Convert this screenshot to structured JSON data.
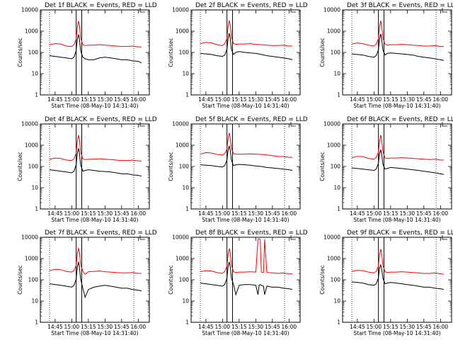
{
  "chart_data": [
    {
      "type": "line",
      "title": "Det 1f BLACK = Events, RED = LLD",
      "ylabel": "Counts/sec",
      "xlabel": "Start Time (08-May-10 14:31:40)",
      "yscale": "log",
      "ylim": [
        1,
        10000
      ],
      "xlim": [
        "14:31:40",
        "16:10"
      ],
      "x_ticks": [
        "14:45",
        "15:00",
        "15:15",
        "15:30",
        "15:45",
        "16:00"
      ],
      "y_ticks": [
        "1",
        "10",
        "100",
        "1000",
        "10000"
      ],
      "vlines_solid": [
        "15:04",
        "15:09"
      ],
      "vlines_dotted": [
        "14:40",
        "15:56"
      ],
      "x": [
        "14:40",
        "14:45",
        "14:50",
        "14:55",
        "15:00",
        "15:02",
        "15:04",
        "15:05",
        "15:06",
        "15:07",
        "15:08",
        "15:10",
        "15:12",
        "15:15",
        "15:20",
        "15:25",
        "15:30",
        "15:35",
        "15:40",
        "15:45",
        "15:50",
        "15:55",
        "16:00",
        "16:03"
      ],
      "series": [
        {
          "name": "LLD",
          "color": "#ff0000",
          "values": [
            230,
            260,
            250,
            200,
            190,
            230,
            420,
            1500,
            3000,
            1800,
            500,
            230,
            210,
            220,
            220,
            230,
            220,
            210,
            200,
            190,
            190,
            200,
            180,
            180
          ]
        },
        {
          "name": "Events",
          "color": "#000000",
          "values": [
            70,
            65,
            60,
            55,
            50,
            60,
            120,
            400,
            700,
            400,
            120,
            60,
            50,
            45,
            45,
            55,
            60,
            55,
            50,
            45,
            45,
            40,
            38,
            32
          ]
        }
      ]
    },
    {
      "type": "line",
      "title": "Det 2f BLACK = Events, RED = LLD",
      "ylabel": "Counts/sec",
      "xlabel": "Start Time (08-May-10 14:31:40)",
      "yscale": "log",
      "ylim": [
        1,
        10000
      ],
      "xlim": [
        "14:31:40",
        "16:10"
      ],
      "x_ticks": [
        "14:45",
        "15:00",
        "15:15",
        "15:30",
        "15:45",
        "16:00"
      ],
      "y_ticks": [
        "1",
        "10",
        "100",
        "1000",
        "10000"
      ],
      "vlines_solid": [
        "15:04",
        "15:09"
      ],
      "vlines_dotted": [
        "14:40",
        "15:56"
      ],
      "x": [
        "14:40",
        "14:45",
        "14:50",
        "14:55",
        "15:00",
        "15:02",
        "15:04",
        "15:05",
        "15:06",
        "15:07",
        "15:08",
        "15:10",
        "15:12",
        "15:15",
        "15:20",
        "15:25",
        "15:30",
        "15:35",
        "15:40",
        "15:45",
        "15:50",
        "15:55",
        "16:00",
        "16:03"
      ],
      "series": [
        {
          "name": "LLD",
          "color": "#ff0000",
          "values": [
            260,
            300,
            280,
            230,
            210,
            260,
            450,
            1600,
            3200,
            1900,
            520,
            260,
            240,
            250,
            250,
            260,
            240,
            230,
            220,
            210,
            210,
            220,
            200,
            200
          ]
        },
        {
          "name": "Events",
          "color": "#000000",
          "values": [
            90,
            85,
            80,
            70,
            65,
            75,
            140,
            450,
            800,
            450,
            140,
            80,
            100,
            110,
            100,
            95,
            90,
            80,
            70,
            65,
            60,
            55,
            50,
            45
          ]
        }
      ]
    },
    {
      "type": "line",
      "title": "Det 3f BLACK = Events, RED = LLD",
      "ylabel": "Counts/sec",
      "xlabel": "Start Time (08-May-10 14:31:40)",
      "yscale": "log",
      "ylim": [
        1,
        10000
      ],
      "xlim": [
        "14:31:40",
        "16:10"
      ],
      "x_ticks": [
        "14:45",
        "15:00",
        "15:15",
        "15:30",
        "15:45",
        "16:00"
      ],
      "y_ticks": [
        "1",
        "10",
        "100",
        "1000",
        "10000"
      ],
      "vlines_solid": [
        "15:04",
        "15:09"
      ],
      "vlines_dotted": [
        "14:40",
        "15:56"
      ],
      "x": [
        "14:40",
        "14:45",
        "14:50",
        "14:55",
        "15:00",
        "15:02",
        "15:04",
        "15:05",
        "15:06",
        "15:07",
        "15:08",
        "15:10",
        "15:12",
        "15:15",
        "15:20",
        "15:25",
        "15:30",
        "15:35",
        "15:40",
        "15:45",
        "15:50",
        "15:55",
        "16:00",
        "16:03"
      ],
      "series": [
        {
          "name": "LLD",
          "color": "#ff0000",
          "values": [
            250,
            280,
            260,
            220,
            200,
            250,
            430,
            1550,
            3100,
            1850,
            500,
            240,
            220,
            230,
            230,
            240,
            230,
            220,
            210,
            200,
            200,
            210,
            190,
            190
          ]
        },
        {
          "name": "Events",
          "color": "#000000",
          "values": [
            85,
            80,
            75,
            65,
            60,
            70,
            130,
            420,
            750,
            420,
            130,
            75,
            90,
            95,
            90,
            85,
            80,
            75,
            65,
            60,
            55,
            50,
            45,
            42
          ]
        }
      ]
    },
    {
      "type": "line",
      "title": "Det 4f BLACK = Events, RED = LLD",
      "ylabel": "Counts/sec",
      "xlabel": "Start Time (08-May-10 14:31:40)",
      "yscale": "log",
      "ylim": [
        1,
        10000
      ],
      "xlim": [
        "14:31:40",
        "16:10"
      ],
      "x_ticks": [
        "14:45",
        "15:00",
        "15:15",
        "15:30",
        "15:45",
        "16:00"
      ],
      "y_ticks": [
        "1",
        "10",
        "100",
        "1000",
        "10000"
      ],
      "vlines_solid": [
        "15:04",
        "15:09"
      ],
      "vlines_dotted": [
        "14:40",
        "15:56"
      ],
      "x": [
        "14:40",
        "14:45",
        "14:50",
        "14:55",
        "15:00",
        "15:02",
        "15:04",
        "15:05",
        "15:06",
        "15:07",
        "15:08",
        "15:10",
        "15:12",
        "15:15",
        "15:20",
        "15:25",
        "15:30",
        "15:35",
        "15:40",
        "15:45",
        "15:50",
        "15:55",
        "16:00",
        "16:03"
      ],
      "series": [
        {
          "name": "LLD",
          "color": "#ff0000",
          "values": [
            220,
            250,
            240,
            200,
            190,
            230,
            420,
            1500,
            3000,
            1800,
            480,
            230,
            210,
            220,
            220,
            230,
            220,
            210,
            200,
            190,
            190,
            200,
            180,
            180
          ]
        },
        {
          "name": "Events",
          "color": "#000000",
          "values": [
            70,
            65,
            60,
            55,
            50,
            60,
            120,
            400,
            720,
            400,
            120,
            60,
            65,
            70,
            65,
            60,
            58,
            55,
            50,
            45,
            45,
            40,
            38,
            35
          ]
        }
      ]
    },
    {
      "type": "line",
      "title": "Det 5f BLACK = Events, RED = LLD",
      "ylabel": "Counts/sec",
      "xlabel": "Start Time (08-May-10 14:31:40)",
      "yscale": "log",
      "ylim": [
        1,
        10000
      ],
      "xlim": [
        "14:31:40",
        "16:10"
      ],
      "x_ticks": [
        "14:45",
        "15:00",
        "15:15",
        "15:30",
        "15:45",
        "16:00"
      ],
      "y_ticks": [
        "1",
        "10",
        "100",
        "1000",
        "10000"
      ],
      "vlines_solid": [
        "15:04",
        "15:09"
      ],
      "vlines_dotted": [
        "14:40",
        "15:56"
      ],
      "x": [
        "14:40",
        "14:45",
        "14:50",
        "14:55",
        "15:00",
        "15:02",
        "15:04",
        "15:05",
        "15:06",
        "15:07",
        "15:08",
        "15:10",
        "15:12",
        "15:15",
        "15:20",
        "15:25",
        "15:30",
        "15:35",
        "15:40",
        "15:45",
        "15:50",
        "15:55",
        "16:00",
        "16:03"
      ],
      "series": [
        {
          "name": "LLD",
          "color": "#ff0000",
          "values": [
            380,
            450,
            430,
            370,
            350,
            400,
            650,
            2000,
            3800,
            2200,
            700,
            400,
            380,
            380,
            380,
            390,
            380,
            370,
            350,
            320,
            300,
            290,
            270,
            270
          ]
        },
        {
          "name": "Events",
          "color": "#000000",
          "values": [
            120,
            115,
            110,
            100,
            95,
            110,
            200,
            550,
            950,
            550,
            200,
            110,
            120,
            125,
            120,
            115,
            105,
            100,
            90,
            85,
            80,
            75,
            70,
            65
          ]
        }
      ]
    },
    {
      "type": "line",
      "title": "Det 6f BLACK = Events, RED = LLD",
      "ylabel": "Counts/sec",
      "xlabel": "Start Time (08-May-10 14:31:40)",
      "yscale": "log",
      "ylim": [
        1,
        10000
      ],
      "xlim": [
        "14:31:40",
        "16:10"
      ],
      "x_ticks": [
        "14:45",
        "15:00",
        "15:15",
        "15:30",
        "15:45",
        "16:00"
      ],
      "y_ticks": [
        "1",
        "10",
        "100",
        "1000",
        "10000"
      ],
      "vlines_solid": [
        "15:04",
        "15:09"
      ],
      "vlines_dotted": [
        "14:40",
        "15:56"
      ],
      "x": [
        "14:40",
        "14:45",
        "14:50",
        "14:55",
        "15:00",
        "15:02",
        "15:04",
        "15:05",
        "15:06",
        "15:07",
        "15:08",
        "15:10",
        "15:12",
        "15:15",
        "15:20",
        "15:25",
        "15:30",
        "15:35",
        "15:40",
        "15:45",
        "15:50",
        "15:55",
        "16:00",
        "16:03"
      ],
      "series": [
        {
          "name": "LLD",
          "color": "#ff0000",
          "values": [
            260,
            300,
            290,
            240,
            220,
            270,
            450,
            1500,
            3000,
            1800,
            500,
            250,
            240,
            250,
            250,
            260,
            250,
            240,
            230,
            220,
            210,
            220,
            200,
            200
          ]
        },
        {
          "name": "Events",
          "color": "#000000",
          "values": [
            85,
            80,
            75,
            70,
            65,
            75,
            140,
            400,
            600,
            380,
            130,
            75,
            80,
            90,
            85,
            80,
            75,
            70,
            65,
            60,
            55,
            50,
            45,
            42
          ]
        }
      ]
    },
    {
      "type": "line",
      "title": "Det 7f BLACK = Events, RED = LLD",
      "ylabel": "Counts/sec",
      "xlabel": "Start Time (08-May-10 14:31:40)",
      "yscale": "log",
      "ylim": [
        1,
        10000
      ],
      "xlim": [
        "14:31:40",
        "16:10"
      ],
      "x_ticks": [
        "14:45",
        "15:00",
        "15:15",
        "15:30",
        "15:45",
        "16:00"
      ],
      "y_ticks": [
        "1",
        "10",
        "100",
        "1000",
        "10000"
      ],
      "vlines_solid": [
        "15:04",
        "15:09"
      ],
      "vlines_dotted": [
        "14:40",
        "15:56"
      ],
      "x": [
        "14:40",
        "14:45",
        "14:50",
        "14:55",
        "15:00",
        "15:02",
        "15:04",
        "15:05",
        "15:06",
        "15:07",
        "15:08",
        "15:10",
        "15:12",
        "15:15",
        "15:20",
        "15:25",
        "15:30",
        "15:35",
        "15:40",
        "15:45",
        "15:50",
        "15:55",
        "16:00",
        "16:03"
      ],
      "series": [
        {
          "name": "LLD",
          "color": "#ff0000",
          "values": [
            270,
            310,
            300,
            250,
            230,
            270,
            470,
            1600,
            3100,
            1900,
            520,
            260,
            180,
            240,
            250,
            260,
            240,
            230,
            220,
            210,
            210,
            220,
            200,
            200
          ]
        },
        {
          "name": "Events",
          "color": "#000000",
          "values": [
            65,
            60,
            55,
            50,
            45,
            55,
            110,
            380,
            700,
            380,
            110,
            40,
            15,
            35,
            45,
            50,
            55,
            50,
            45,
            40,
            40,
            35,
            32,
            30
          ]
        }
      ]
    },
    {
      "type": "line",
      "title": "Det 8f BLACK = Events, RED = LLD",
      "ylabel": "Counts/sec",
      "xlabel": "Start Time (08-May-10 14:31:40)",
      "yscale": "log",
      "ylim": [
        1,
        10000
      ],
      "xlim": [
        "14:31:40",
        "16:10"
      ],
      "x_ticks": [
        "14:45",
        "15:00",
        "15:15",
        "15:30",
        "15:45",
        "16:00"
      ],
      "y_ticks": [
        "1",
        "10",
        "100",
        "1000",
        "10000"
      ],
      "vlines_solid": [
        "15:04",
        "15:09"
      ],
      "vlines_dotted": [
        "14:40",
        "15:56"
      ],
      "x": [
        "14:40",
        "14:45",
        "14:50",
        "14:55",
        "15:00",
        "15:02",
        "15:04",
        "15:05",
        "15:06",
        "15:07",
        "15:08",
        "15:10",
        "15:12",
        "15:15",
        "15:20",
        "15:25",
        "15:30",
        "15:32",
        "15:33",
        "15:34",
        "15:35",
        "15:37",
        "15:38",
        "15:40",
        "15:45",
        "15:50",
        "15:55",
        "16:00",
        "16:03"
      ],
      "series": [
        {
          "name": "LLD",
          "color": "#ff0000",
          "values": [
            240,
            270,
            260,
            220,
            200,
            250,
            440,
            1550,
            3000,
            1800,
            500,
            240,
            220,
            230,
            230,
            240,
            230,
            8000,
            8500,
            8000,
            230,
            220,
            8000,
            220,
            210,
            200,
            210,
            190,
            190
          ]
        },
        {
          "name": "Events",
          "color": "#000000",
          "values": [
            70,
            65,
            60,
            55,
            50,
            60,
            120,
            400,
            700,
            400,
            120,
            60,
            20,
            55,
            60,
            60,
            55,
            20,
            55,
            60,
            55,
            50,
            20,
            50,
            45,
            45,
            40,
            38,
            35
          ]
        }
      ]
    },
    {
      "type": "line",
      "title": "Det 9f BLACK = Events, RED = LLD",
      "ylabel": "Counts/sec",
      "xlabel": "Start Time (08-May-10 14:31:40)",
      "yscale": "log",
      "ylim": [
        1,
        10000
      ],
      "xlim": [
        "14:31:40",
        "16:10"
      ],
      "x_ticks": [
        "14:45",
        "15:00",
        "15:15",
        "15:30",
        "15:45",
        "16:00"
      ],
      "y_ticks": [
        "1",
        "10",
        "100",
        "1000",
        "10000"
      ],
      "vlines_solid": [
        "15:04",
        "15:09"
      ],
      "vlines_dotted": [
        "14:40",
        "15:56"
      ],
      "x": [
        "14:40",
        "14:45",
        "14:50",
        "14:55",
        "15:00",
        "15:02",
        "15:04",
        "15:05",
        "15:06",
        "15:07",
        "15:08",
        "15:10",
        "15:12",
        "15:15",
        "15:20",
        "15:25",
        "15:30",
        "15:35",
        "15:40",
        "15:45",
        "15:50",
        "15:55",
        "16:00",
        "16:03"
      ],
      "series": [
        {
          "name": "LLD",
          "color": "#ff0000",
          "values": [
            250,
            280,
            270,
            230,
            210,
            250,
            440,
            1500,
            2800,
            1700,
            480,
            240,
            220,
            230,
            230,
            240,
            230,
            220,
            210,
            200,
            200,
            210,
            190,
            180
          ]
        },
        {
          "name": "Events",
          "color": "#000000",
          "values": [
            80,
            75,
            70,
            60,
            55,
            65,
            120,
            350,
            500,
            320,
            120,
            65,
            70,
            75,
            70,
            65,
            60,
            55,
            50,
            45,
            45,
            40,
            38,
            35
          ]
        }
      ]
    }
  ]
}
